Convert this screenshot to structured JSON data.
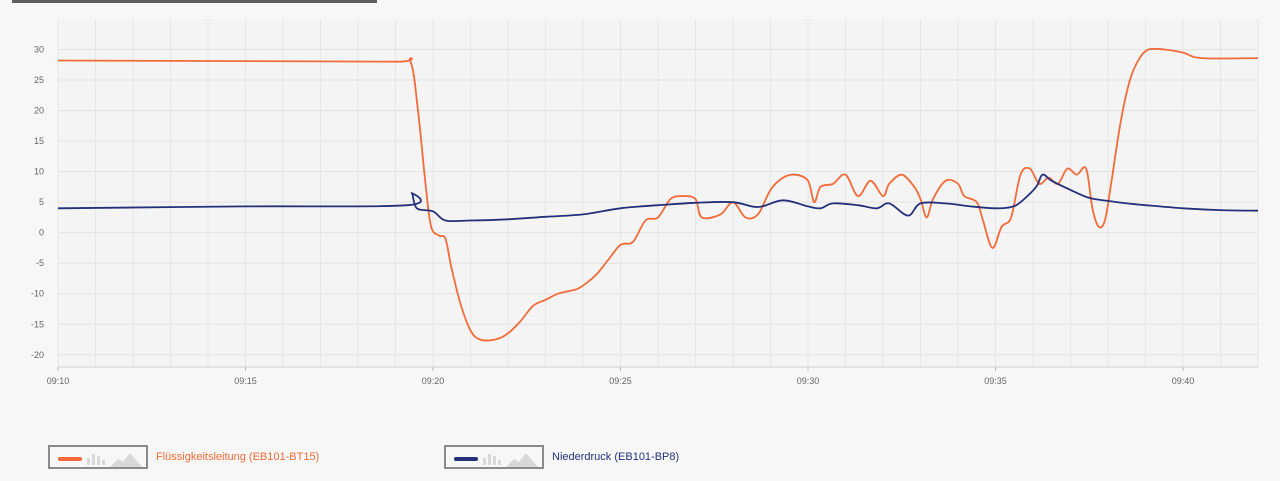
{
  "chart_data": {
    "type": "line",
    "x_ticks": [
      "09:10",
      "09:15",
      "09:20",
      "09:25",
      "09:30",
      "09:35",
      "09:40"
    ],
    "x_range": [
      "09:10",
      "09:42"
    ],
    "y_ticks": [
      30,
      25,
      20,
      15,
      10,
      5,
      0,
      -5,
      -10,
      -15,
      -20
    ],
    "ylim": [
      -22,
      35
    ],
    "grid": true,
    "legend_position": "bottom-left",
    "series": [
      {
        "name": "Flüssigkeitsleitung (EB101-BT15)",
        "color": "#f26b38",
        "points": [
          [
            "09:10",
            28.2
          ],
          [
            "09:15",
            28.1
          ],
          [
            "09:19",
            28.0
          ],
          [
            "09:19:24",
            28.0
          ],
          [
            "09:19:36",
            20.0
          ],
          [
            "09:19:48",
            8.0
          ],
          [
            "09:19:57",
            1.0
          ],
          [
            "09:20:10",
            -0.5
          ],
          [
            "09:20:20",
            -1.0
          ],
          [
            "09:20:30",
            -6.0
          ],
          [
            "09:20:45",
            -12.0
          ],
          [
            "09:21:00",
            -16.0
          ],
          [
            "09:21:15",
            -17.5
          ],
          [
            "09:21:40",
            -17.5
          ],
          [
            "09:22",
            -16.5
          ],
          [
            "09:22:20",
            -14.5
          ],
          [
            "09:22:40",
            -12.0
          ],
          [
            "09:23:00",
            -11.0
          ],
          [
            "09:23:20",
            -10.0
          ],
          [
            "09:23:40",
            -9.5
          ],
          [
            "09:23:55",
            -9.0
          ],
          [
            "09:24:20",
            -7.0
          ],
          [
            "09:24:40",
            -4.5
          ],
          [
            "09:25:00",
            -2.0
          ],
          [
            "09:25:20",
            -1.5
          ],
          [
            "09:25:40",
            2.0
          ],
          [
            "09:26:00",
            2.5
          ],
          [
            "09:26:20",
            5.5
          ],
          [
            "09:26:40",
            6.0
          ],
          [
            "09:27:00",
            5.5
          ],
          [
            "09:27:10",
            2.5
          ],
          [
            "09:27:40",
            3.0
          ],
          [
            "09:28:00",
            5.0
          ],
          [
            "09:28:20",
            2.5
          ],
          [
            "09:28:40",
            3.0
          ],
          [
            "09:29:00",
            7.0
          ],
          [
            "09:29:20",
            9.0
          ],
          [
            "09:29:40",
            9.5
          ],
          [
            "09:30:00",
            8.5
          ],
          [
            "09:30:10",
            5.0
          ],
          [
            "09:30:20",
            7.5
          ],
          [
            "09:30:40",
            8.0
          ],
          [
            "09:31:00",
            9.5
          ],
          [
            "09:31:20",
            6.0
          ],
          [
            "09:31:40",
            8.5
          ],
          [
            "09:32:00",
            6.0
          ],
          [
            "09:32:10",
            8.0
          ],
          [
            "09:32:30",
            9.5
          ],
          [
            "09:32:50",
            7.5
          ],
          [
            "09:33:00",
            5.5
          ],
          [
            "09:33:10",
            2.5
          ],
          [
            "09:33:20",
            5.5
          ],
          [
            "09:33:40",
            8.5
          ],
          [
            "09:34:00",
            8.0
          ],
          [
            "09:34:10",
            6.0
          ],
          [
            "09:34:30",
            5.0
          ],
          [
            "09:34:40",
            2.0
          ],
          [
            "09:34:55",
            -2.5
          ],
          [
            "09:35:10",
            1.0
          ],
          [
            "09:35:25",
            2.5
          ],
          [
            "09:35:40",
            9.5
          ],
          [
            "09:35:55",
            10.5
          ],
          [
            "09:36:10",
            8.0
          ],
          [
            "09:36:25",
            9.0
          ],
          [
            "09:36:40",
            8.0
          ],
          [
            "09:36:55",
            10.5
          ],
          [
            "09:37:10",
            9.5
          ],
          [
            "09:37:25",
            10.5
          ],
          [
            "09:37:35",
            4.0
          ],
          [
            "09:37:45",
            1.0
          ],
          [
            "09:37:55",
            2.0
          ],
          [
            "09:38:05",
            8.0
          ],
          [
            "09:38:20",
            18.0
          ],
          [
            "09:38:35",
            25.0
          ],
          [
            "09:38:50",
            28.5
          ],
          [
            "09:39:05",
            30.0
          ],
          [
            "09:39:30",
            30.0
          ],
          [
            "09:40:00",
            29.5
          ],
          [
            "09:40:30",
            28.6
          ],
          [
            "09:42:00",
            28.6
          ]
        ]
      },
      {
        "name": "Niederdruck (EB101-BP8)",
        "color": "#24317a",
        "points": [
          [
            "09:10",
            4.0
          ],
          [
            "09:15",
            4.3
          ],
          [
            "09:19:20",
            4.5
          ],
          [
            "09:19:26",
            6.5
          ],
          [
            "09:19:34",
            4.0
          ],
          [
            "09:20:00",
            3.5
          ],
          [
            "09:20:20",
            2.0
          ],
          [
            "09:21:00",
            2.0
          ],
          [
            "09:22:00",
            2.2
          ],
          [
            "09:23:00",
            2.6
          ],
          [
            "09:24:00",
            3.0
          ],
          [
            "09:25:00",
            4.0
          ],
          [
            "09:26:00",
            4.5
          ],
          [
            "09:27:00",
            4.9
          ],
          [
            "09:28:00",
            5.0
          ],
          [
            "09:28:40",
            4.2
          ],
          [
            "09:29:20",
            5.3
          ],
          [
            "09:30:00",
            4.3
          ],
          [
            "09:30:20",
            4.0
          ],
          [
            "09:30:40",
            4.8
          ],
          [
            "09:31:20",
            4.5
          ],
          [
            "09:31:50",
            4.0
          ],
          [
            "09:32:10",
            4.8
          ],
          [
            "09:32:40",
            2.8
          ],
          [
            "09:33:00",
            4.8
          ],
          [
            "09:33:40",
            4.8
          ],
          [
            "09:34:20",
            4.3
          ],
          [
            "09:35:00",
            4.0
          ],
          [
            "09:35:25",
            4.2
          ],
          [
            "09:35:40",
            5.0
          ],
          [
            "09:36:05",
            7.5
          ],
          [
            "09:36:15",
            9.5
          ],
          [
            "09:36:30",
            8.5
          ],
          [
            "09:37:00",
            7.0
          ],
          [
            "09:37:30",
            5.7
          ],
          [
            "09:38:00",
            5.2
          ],
          [
            "09:38:30",
            4.8
          ],
          [
            "09:39:00",
            4.5
          ],
          [
            "09:40:00",
            4.0
          ],
          [
            "09:41:00",
            3.7
          ],
          [
            "09:42:00",
            3.6
          ]
        ]
      }
    ]
  },
  "legend": {
    "items": [
      {
        "label": "Flüssigkeitsleitung (EB101-BT15)",
        "color": "#f26b38"
      },
      {
        "label": "Niederdruck (EB101-BP8)",
        "color": "#24317a"
      }
    ]
  }
}
